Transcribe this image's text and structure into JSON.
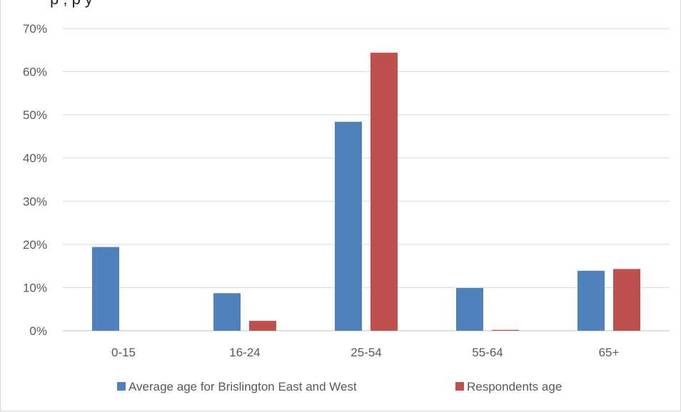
{
  "header": {
    "caption": "p                                  ,                                  p             y"
  },
  "chart_data": {
    "type": "bar",
    "categories": [
      "0-15",
      "16-24",
      "25-54",
      "55-64",
      "65+"
    ],
    "series": [
      {
        "name": "Average age for Brislington East and West",
        "color": "#4f81bd",
        "values": [
          19.4,
          8.7,
          48.4,
          9.9,
          13.9
        ]
      },
      {
        "name": "Respondents age",
        "color": "#c0504d",
        "values": [
          0,
          2.3,
          64.4,
          0.2,
          14.3
        ]
      }
    ],
    "yticks": [
      "0%",
      "10%",
      "20%",
      "30%",
      "40%",
      "50%",
      "60%",
      "70%"
    ],
    "ylim": [
      0,
      70
    ],
    "grid": true,
    "legend_position": "bottom"
  }
}
